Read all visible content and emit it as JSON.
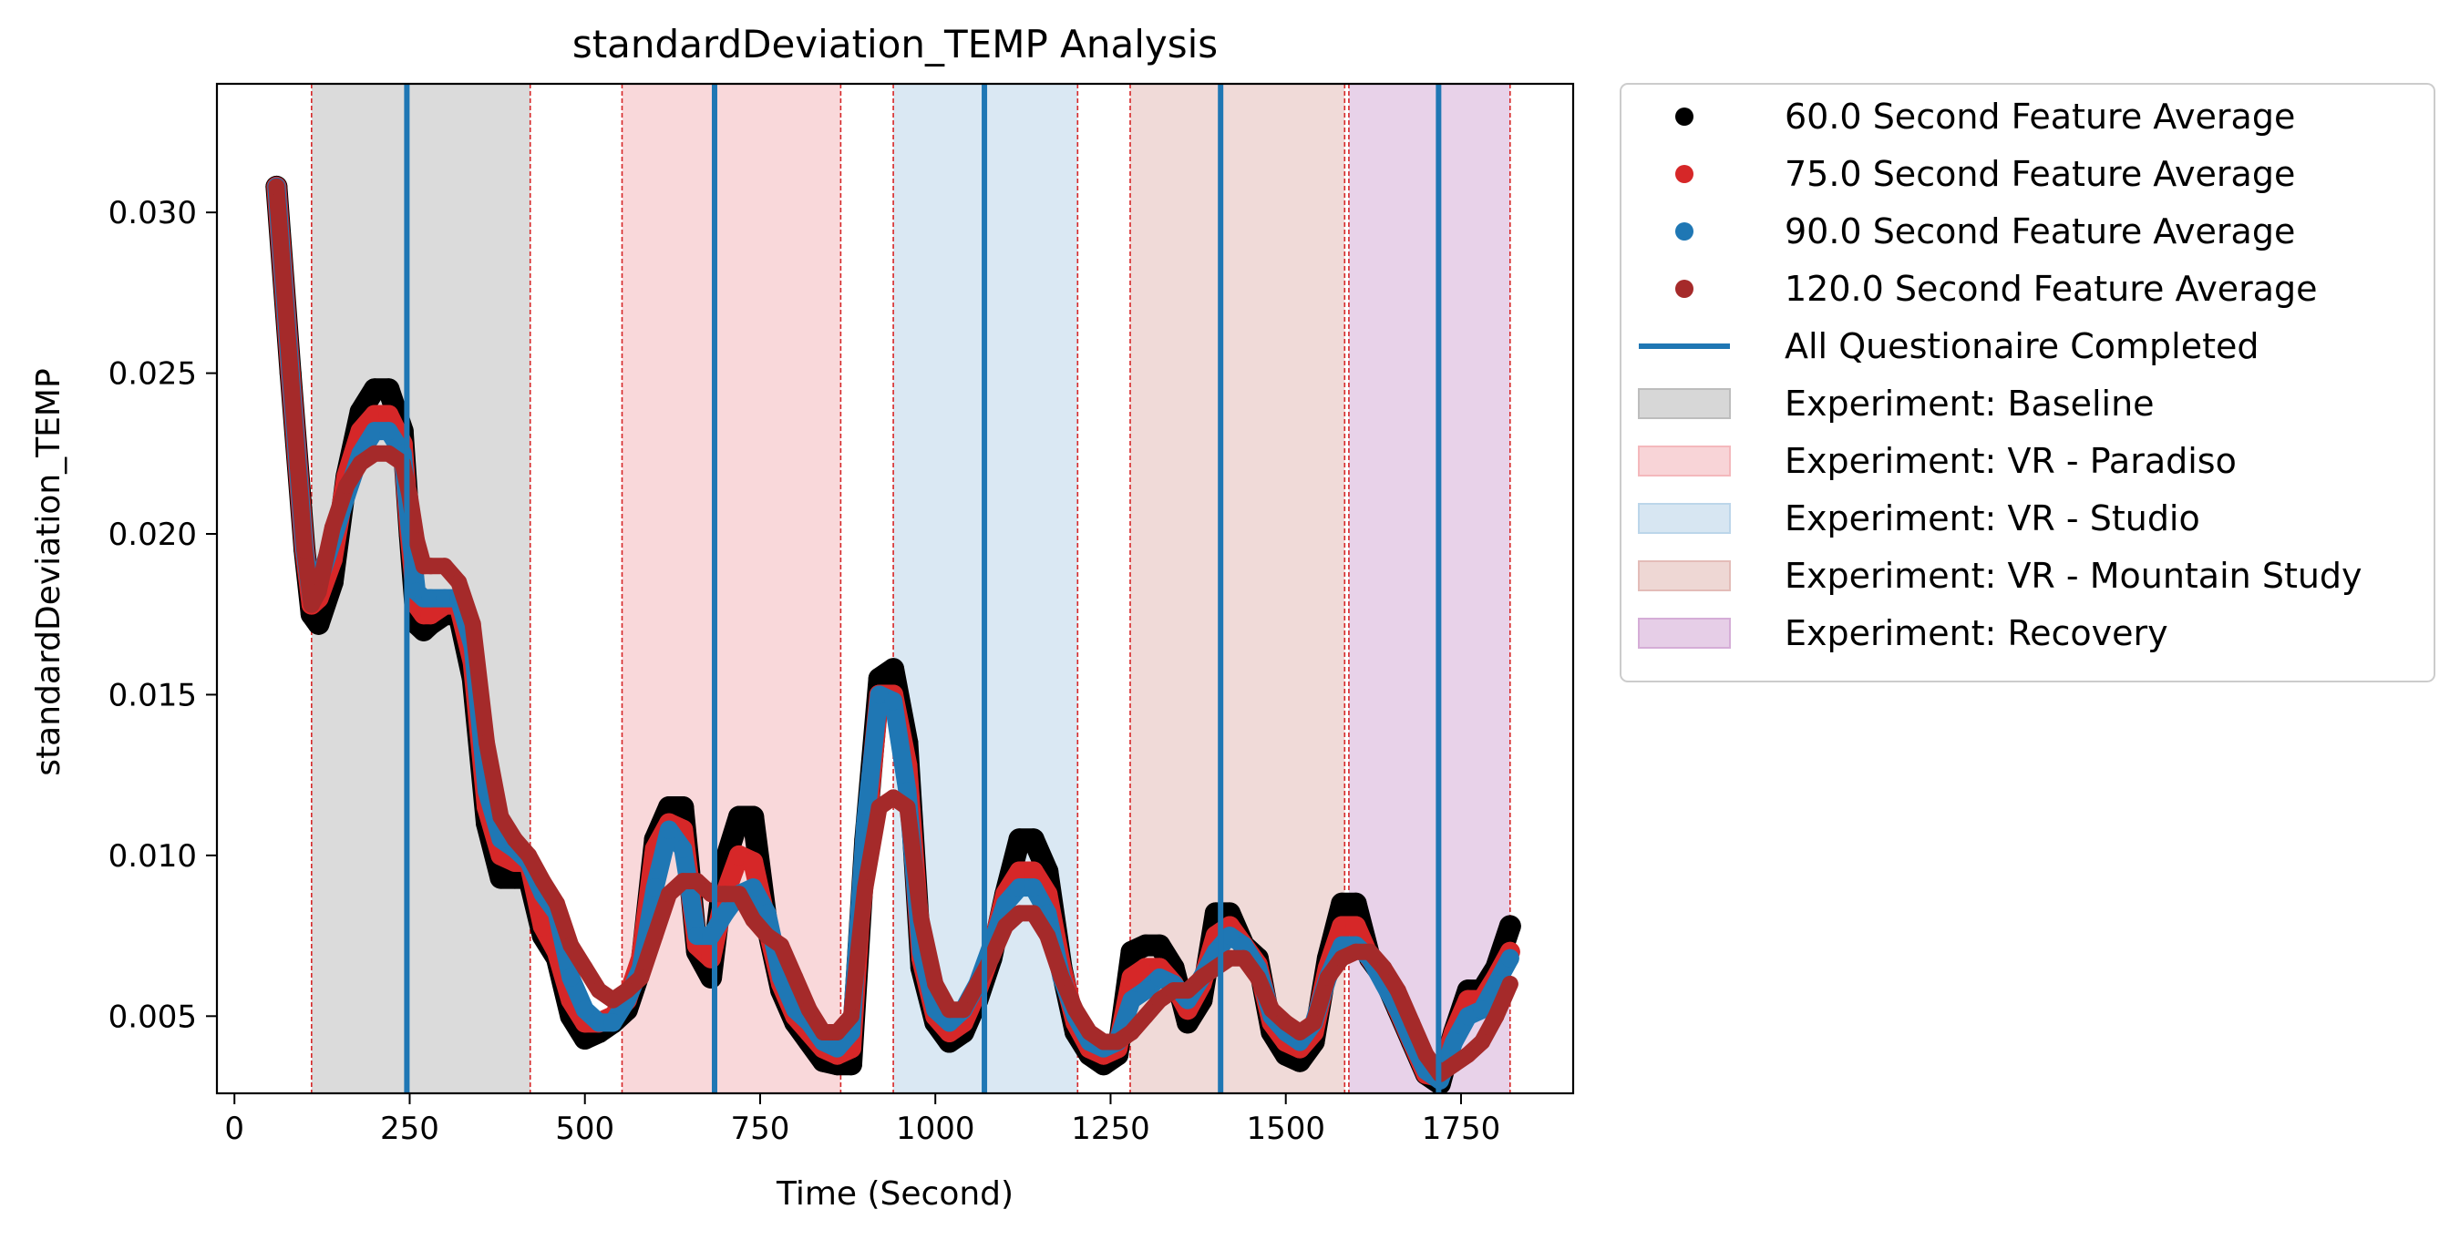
{
  "chart_data": {
    "type": "scatter",
    "title": "standardDeviation_TEMP Analysis",
    "xlabel": "Time (Second)",
    "ylabel": "standardDeviation_TEMP",
    "xlim": [
      -25,
      1910
    ],
    "ylim": [
      0.0026,
      0.034
    ],
    "xticks": [
      0,
      250,
      500,
      750,
      1000,
      1250,
      1500,
      1750
    ],
    "yticks": [
      0.005,
      0.01,
      0.015,
      0.02,
      0.025,
      0.03
    ],
    "xtick_labels": [
      "0",
      "250",
      "500",
      "750",
      "1000",
      "1250",
      "1500",
      "1750"
    ],
    "ytick_labels": [
      "0.005",
      "0.010",
      "0.015",
      "0.020",
      "0.025",
      "0.030"
    ],
    "grid": false,
    "legend_position": "outside-right-top",
    "experiment_regions": [
      {
        "name": "Experiment: Baseline",
        "start": 110,
        "end": 422,
        "color": "#bdbdbd"
      },
      {
        "name": "Experiment: VR - Paradiso",
        "start": 553,
        "end": 865,
        "color": "#f4b8bc"
      },
      {
        "name": "Experiment: VR - Studio",
        "start": 940,
        "end": 1203,
        "color": "#bcd6ea"
      },
      {
        "name": "Experiment: VR - Mountain Study",
        "start": 1278,
        "end": 1584,
        "color": "#e3bcb8"
      },
      {
        "name": "Experiment: Recovery",
        "start": 1590,
        "end": 1820,
        "color": "#d5add7"
      }
    ],
    "questionnaire": {
      "name": "All Questionaire Completed",
      "x": [
        246,
        685,
        1070,
        1407,
        1718
      ],
      "color": "#1f77b4"
    },
    "series": [
      {
        "name": "60.0 Second Feature Average",
        "color": "#000000",
        "x": [
          60,
          80,
          100,
          110,
          120,
          140,
          160,
          180,
          200,
          220,
          240,
          250,
          260,
          270,
          280,
          300,
          320,
          340,
          360,
          380,
          400,
          420,
          440,
          460,
          480,
          500,
          520,
          540,
          560,
          580,
          600,
          620,
          640,
          660,
          680,
          700,
          720,
          740,
          760,
          780,
          800,
          820,
          840,
          860,
          880,
          900,
          920,
          940,
          960,
          980,
          1000,
          1020,
          1040,
          1060,
          1080,
          1100,
          1120,
          1140,
          1160,
          1180,
          1200,
          1220,
          1240,
          1260,
          1280,
          1300,
          1320,
          1340,
          1360,
          1380,
          1400,
          1420,
          1440,
          1460,
          1480,
          1500,
          1520,
          1540,
          1560,
          1580,
          1600,
          1620,
          1640,
          1660,
          1680,
          1700,
          1720,
          1740,
          1760,
          1780,
          1800,
          1820
        ],
        "values": [
          0.0308,
          0.025,
          0.0195,
          0.0175,
          0.0172,
          0.0185,
          0.0218,
          0.0238,
          0.0245,
          0.0245,
          0.0232,
          0.02,
          0.0172,
          0.017,
          0.0172,
          0.0175,
          0.0175,
          0.0155,
          0.011,
          0.0093,
          0.0093,
          0.0093,
          0.0075,
          0.0068,
          0.005,
          0.0043,
          0.0045,
          0.0048,
          0.0052,
          0.0065,
          0.0105,
          0.0115,
          0.0115,
          0.007,
          0.0062,
          0.0098,
          0.0112,
          0.0112,
          0.0078,
          0.0058,
          0.0048,
          0.0042,
          0.0036,
          0.0035,
          0.0035,
          0.0105,
          0.0155,
          0.0158,
          0.0135,
          0.0065,
          0.0048,
          0.0042,
          0.0045,
          0.0055,
          0.0068,
          0.0088,
          0.0105,
          0.0105,
          0.0095,
          0.0065,
          0.0045,
          0.0038,
          0.0035,
          0.0038,
          0.007,
          0.0072,
          0.0072,
          0.0065,
          0.0048,
          0.0055,
          0.0082,
          0.0082,
          0.0072,
          0.0068,
          0.0045,
          0.0038,
          0.0036,
          0.0042,
          0.0068,
          0.0085,
          0.0085,
          0.0068,
          0.0062,
          0.0052,
          0.0042,
          0.0032,
          0.0029,
          0.0045,
          0.0058,
          0.0058,
          0.0065,
          0.0078
        ]
      },
      {
        "name": "75.0 Second Feature Average",
        "color": "#d62728",
        "x": [
          60,
          80,
          100,
          110,
          120,
          140,
          160,
          180,
          200,
          220,
          240,
          250,
          260,
          270,
          280,
          300,
          320,
          340,
          360,
          380,
          400,
          420,
          440,
          460,
          480,
          500,
          520,
          540,
          560,
          580,
          600,
          620,
          640,
          660,
          680,
          700,
          720,
          740,
          760,
          780,
          800,
          820,
          840,
          860,
          880,
          900,
          920,
          940,
          960,
          980,
          1000,
          1020,
          1040,
          1060,
          1080,
          1100,
          1120,
          1140,
          1160,
          1180,
          1200,
          1220,
          1240,
          1260,
          1280,
          1300,
          1320,
          1340,
          1360,
          1380,
          1400,
          1420,
          1440,
          1460,
          1480,
          1500,
          1520,
          1540,
          1560,
          1580,
          1600,
          1620,
          1640,
          1660,
          1680,
          1700,
          1720,
          1740,
          1760,
          1780,
          1800,
          1820
        ],
        "values": [
          0.0308,
          0.025,
          0.0195,
          0.0178,
          0.018,
          0.0192,
          0.0218,
          0.0232,
          0.0237,
          0.0237,
          0.0228,
          0.02,
          0.0178,
          0.0175,
          0.0175,
          0.0178,
          0.0178,
          0.016,
          0.0115,
          0.01,
          0.0098,
          0.0098,
          0.0078,
          0.007,
          0.0055,
          0.0048,
          0.0048,
          0.005,
          0.0055,
          0.0068,
          0.0102,
          0.011,
          0.0108,
          0.0072,
          0.0068,
          0.0088,
          0.01,
          0.0098,
          0.0078,
          0.006,
          0.005,
          0.0045,
          0.004,
          0.0038,
          0.004,
          0.0105,
          0.015,
          0.015,
          0.0128,
          0.0068,
          0.005,
          0.0045,
          0.0048,
          0.0058,
          0.007,
          0.0088,
          0.0095,
          0.0095,
          0.0088,
          0.0065,
          0.0048,
          0.004,
          0.0038,
          0.004,
          0.0062,
          0.0065,
          0.0065,
          0.006,
          0.0052,
          0.006,
          0.0075,
          0.0078,
          0.0072,
          0.0066,
          0.0048,
          0.0042,
          0.004,
          0.0045,
          0.0065,
          0.0078,
          0.0078,
          0.0068,
          0.0062,
          0.0052,
          0.0042,
          0.0032,
          0.0031,
          0.0045,
          0.0055,
          0.0055,
          0.0062,
          0.007
        ]
      },
      {
        "name": "90.0 Second Feature Average",
        "color": "#1f77b4",
        "x": [
          60,
          80,
          100,
          110,
          120,
          140,
          160,
          180,
          200,
          220,
          240,
          250,
          260,
          270,
          280,
          300,
          320,
          340,
          360,
          380,
          400,
          420,
          440,
          460,
          480,
          500,
          520,
          540,
          560,
          580,
          600,
          620,
          640,
          660,
          680,
          700,
          720,
          740,
          760,
          780,
          800,
          820,
          840,
          860,
          880,
          900,
          920,
          940,
          960,
          980,
          1000,
          1020,
          1040,
          1060,
          1080,
          1100,
          1120,
          1140,
          1160,
          1180,
          1200,
          1220,
          1240,
          1260,
          1280,
          1300,
          1320,
          1340,
          1360,
          1380,
          1400,
          1420,
          1440,
          1460,
          1480,
          1500,
          1520,
          1540,
          1560,
          1580,
          1600,
          1620,
          1640,
          1660,
          1680,
          1700,
          1720,
          1740,
          1760,
          1780,
          1800,
          1820
        ],
        "values": [
          0.0308,
          0.025,
          0.0195,
          0.018,
          0.0185,
          0.0198,
          0.0212,
          0.0225,
          0.0232,
          0.0232,
          0.0225,
          0.0202,
          0.0182,
          0.018,
          0.018,
          0.018,
          0.018,
          0.0165,
          0.012,
          0.0105,
          0.0102,
          0.0098,
          0.0088,
          0.0082,
          0.0062,
          0.0052,
          0.0048,
          0.0048,
          0.0055,
          0.0065,
          0.009,
          0.0108,
          0.0102,
          0.0075,
          0.0075,
          0.0082,
          0.0088,
          0.009,
          0.0082,
          0.0062,
          0.0052,
          0.0048,
          0.0042,
          0.004,
          0.0045,
          0.011,
          0.015,
          0.0148,
          0.012,
          0.007,
          0.0052,
          0.0048,
          0.0052,
          0.006,
          0.0072,
          0.0085,
          0.009,
          0.009,
          0.0082,
          0.0062,
          0.005,
          0.0042,
          0.004,
          0.0042,
          0.0055,
          0.0058,
          0.0062,
          0.006,
          0.0055,
          0.0062,
          0.007,
          0.0075,
          0.0072,
          0.0065,
          0.005,
          0.0045,
          0.0042,
          0.0048,
          0.0062,
          0.0072,
          0.0072,
          0.0068,
          0.006,
          0.0052,
          0.0042,
          0.0033,
          0.003,
          0.0042,
          0.005,
          0.0052,
          0.006,
          0.0068
        ]
      },
      {
        "name": "120.0 Second Feature Average",
        "color": "#a52a2a",
        "x": [
          60,
          80,
          100,
          110,
          120,
          140,
          160,
          180,
          200,
          220,
          240,
          250,
          260,
          270,
          280,
          300,
          320,
          340,
          360,
          380,
          400,
          420,
          440,
          460,
          480,
          500,
          520,
          540,
          560,
          580,
          600,
          620,
          640,
          660,
          680,
          700,
          720,
          740,
          760,
          780,
          800,
          820,
          840,
          860,
          880,
          900,
          920,
          940,
          960,
          980,
          1000,
          1020,
          1040,
          1060,
          1080,
          1100,
          1120,
          1140,
          1160,
          1180,
          1200,
          1220,
          1240,
          1260,
          1280,
          1300,
          1320,
          1340,
          1360,
          1380,
          1400,
          1420,
          1440,
          1460,
          1480,
          1500,
          1520,
          1540,
          1560,
          1580,
          1600,
          1620,
          1640,
          1660,
          1680,
          1700,
          1720,
          1740,
          1760,
          1780,
          1800,
          1820
        ],
        "values": [
          0.0308,
          0.025,
          0.0195,
          0.0178,
          0.0182,
          0.0202,
          0.0215,
          0.0222,
          0.0225,
          0.0225,
          0.0222,
          0.0212,
          0.0198,
          0.019,
          0.019,
          0.019,
          0.0185,
          0.0172,
          0.0135,
          0.0112,
          0.0105,
          0.01,
          0.0092,
          0.0085,
          0.0072,
          0.0065,
          0.0058,
          0.0055,
          0.0058,
          0.0062,
          0.0075,
          0.0088,
          0.0092,
          0.0092,
          0.0088,
          0.0088,
          0.0088,
          0.008,
          0.0075,
          0.0072,
          0.0062,
          0.0052,
          0.0045,
          0.0045,
          0.005,
          0.009,
          0.0115,
          0.0118,
          0.0115,
          0.008,
          0.006,
          0.0052,
          0.0052,
          0.006,
          0.0068,
          0.0078,
          0.0082,
          0.0082,
          0.0075,
          0.0062,
          0.0052,
          0.0045,
          0.0042,
          0.0042,
          0.0045,
          0.005,
          0.0055,
          0.0058,
          0.0058,
          0.0062,
          0.0065,
          0.0068,
          0.0068,
          0.0062,
          0.0052,
          0.0048,
          0.0045,
          0.0048,
          0.0062,
          0.0068,
          0.007,
          0.007,
          0.0065,
          0.0058,
          0.0048,
          0.0038,
          0.0032,
          0.0035,
          0.0038,
          0.0042,
          0.005,
          0.006
        ]
      }
    ]
  }
}
